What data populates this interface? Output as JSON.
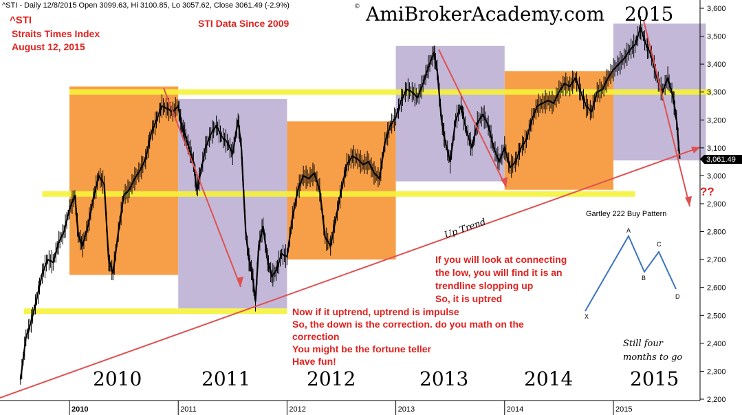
{
  "header": {
    "info_line": "^STI - Daily 12/8/2015 Open 3099.63, Hi 3100.85, Lo 3057.62, Close 3061.49 (-2.9%)",
    "symbol": "^STI",
    "name": "Straits Times Index",
    "date": "August 12, 2015",
    "data_since": "STI Data Since 2009",
    "watermark": "AmiBrokerAcademy.com",
    "watermark_year": "2015"
  },
  "colors": {
    "orange": "#f79a3e",
    "lavender": "#b9acd0",
    "yellow": "#f5f23a",
    "red_annotation": "#e0221f",
    "trend_line": "#e05050",
    "price": "#000000",
    "gartley_line": "#3a74c0"
  },
  "annotations": {
    "up_trend": "Up Trend",
    "question": "??",
    "note1": [
      "If you will look at connecting",
      "the low, you will find it is an",
      "trendline slopping up",
      "So, it is uptred"
    ],
    "note2": [
      "Now if it uptrend, uptrend is impulse",
      "So, the down is the correction. do you math on the",
      "correction",
      "You might be the fortune teller",
      "Have fun!"
    ],
    "still": [
      "Still four",
      "months to go"
    ]
  },
  "gartley": {
    "title": "Gartley 222 Buy Pattern",
    "points": [
      "X",
      "A",
      "B",
      "C",
      "D"
    ]
  },
  "year_labels_big": [
    "2010",
    "2011",
    "2012",
    "2013",
    "2014",
    "2015"
  ],
  "last_price_label": "3,061.49",
  "chart_data": {
    "type": "line",
    "title": "^STI - Daily 12/8/2015 Open 3099.63, Hi 3100.85, Lo 3057.62, Close 3061.49 (-2.9%)",
    "y_ticks": [
      "2,200",
      "2,300",
      "2,400",
      "2,500",
      "2,600",
      "2,700",
      "2,800",
      "2,900",
      "3,000",
      "3,100",
      "3,200",
      "3,300",
      "3,400",
      "3,500",
      "3,600"
    ],
    "ylim": [
      2180,
      3620
    ],
    "x_ticks": [
      "2010",
      "2011",
      "2012",
      "2013",
      "2014",
      "2015"
    ],
    "series": [
      {
        "values": [
          [
            2009.55,
            2270
          ],
          [
            2009.6,
            2420
          ],
          [
            2009.65,
            2480
          ],
          [
            2009.7,
            2560
          ],
          [
            2009.75,
            2650
          ],
          [
            2009.8,
            2700
          ],
          [
            2009.85,
            2690
          ],
          [
            2009.9,
            2760
          ],
          [
            2009.95,
            2800
          ],
          [
            2010.0,
            2880
          ],
          [
            2010.05,
            2930
          ],
          [
            2010.08,
            2790
          ],
          [
            2010.12,
            2750
          ],
          [
            2010.17,
            2820
          ],
          [
            2010.22,
            2920
          ],
          [
            2010.27,
            3000
          ],
          [
            2010.32,
            2970
          ],
          [
            2010.36,
            2700
          ],
          [
            2010.4,
            2650
          ],
          [
            2010.45,
            2800
          ],
          [
            2010.5,
            2930
          ],
          [
            2010.55,
            2950
          ],
          [
            2010.6,
            2990
          ],
          [
            2010.65,
            3020
          ],
          [
            2010.7,
            3060
          ],
          [
            2010.75,
            3150
          ],
          [
            2010.8,
            3200
          ],
          [
            2010.85,
            3250
          ],
          [
            2010.9,
            3240
          ],
          [
            2010.95,
            3230
          ],
          [
            2011.0,
            3250
          ],
          [
            2011.03,
            3180
          ],
          [
            2011.06,
            3150
          ],
          [
            2011.1,
            3100
          ],
          [
            2011.14,
            3050
          ],
          [
            2011.17,
            2950
          ],
          [
            2011.2,
            3000
          ],
          [
            2011.25,
            3100
          ],
          [
            2011.3,
            3150
          ],
          [
            2011.35,
            3180
          ],
          [
            2011.4,
            3140
          ],
          [
            2011.45,
            3120
          ],
          [
            2011.5,
            3080
          ],
          [
            2011.55,
            3200
          ],
          [
            2011.58,
            3100
          ],
          [
            2011.6,
            2950
          ],
          [
            2011.62,
            2800
          ],
          [
            2011.65,
            2700
          ],
          [
            2011.68,
            2650
          ],
          [
            2011.71,
            2550
          ],
          [
            2011.74,
            2750
          ],
          [
            2011.78,
            2820
          ],
          [
            2011.82,
            2700
          ],
          [
            2011.86,
            2640
          ],
          [
            2011.9,
            2660
          ],
          [
            2011.95,
            2720
          ],
          [
            2012.0,
            2710
          ],
          [
            2012.05,
            2850
          ],
          [
            2012.1,
            2950
          ],
          [
            2012.15,
            3000
          ],
          [
            2012.2,
            2990
          ],
          [
            2012.25,
            3010
          ],
          [
            2012.3,
            2950
          ],
          [
            2012.35,
            2780
          ],
          [
            2012.4,
            2750
          ],
          [
            2012.45,
            2850
          ],
          [
            2012.5,
            2950
          ],
          [
            2012.55,
            3040
          ],
          [
            2012.6,
            3070
          ],
          [
            2012.65,
            3060
          ],
          [
            2012.7,
            3040
          ],
          [
            2012.75,
            3050
          ],
          [
            2012.8,
            3010
          ],
          [
            2012.85,
            2990
          ],
          [
            2012.9,
            3120
          ],
          [
            2012.95,
            3180
          ],
          [
            2013.0,
            3210
          ],
          [
            2013.05,
            3270
          ],
          [
            2013.1,
            3310
          ],
          [
            2013.15,
            3300
          ],
          [
            2013.2,
            3280
          ],
          [
            2013.25,
            3330
          ],
          [
            2013.3,
            3390
          ],
          [
            2013.35,
            3440
          ],
          [
            2013.38,
            3380
          ],
          [
            2013.42,
            3200
          ],
          [
            2013.45,
            3130
          ],
          [
            2013.5,
            3050
          ],
          [
            2013.55,
            3200
          ],
          [
            2013.6,
            3250
          ],
          [
            2013.65,
            3160
          ],
          [
            2013.7,
            3100
          ],
          [
            2013.75,
            3190
          ],
          [
            2013.8,
            3220
          ],
          [
            2013.85,
            3180
          ],
          [
            2013.9,
            3100
          ],
          [
            2013.95,
            3050
          ],
          [
            2014.0,
            3100
          ],
          [
            2014.05,
            3030
          ],
          [
            2014.1,
            3050
          ],
          [
            2014.15,
            3100
          ],
          [
            2014.2,
            3130
          ],
          [
            2014.25,
            3200
          ],
          [
            2014.3,
            3250
          ],
          [
            2014.35,
            3260
          ],
          [
            2014.4,
            3270
          ],
          [
            2014.45,
            3260
          ],
          [
            2014.5,
            3300
          ],
          [
            2014.55,
            3330
          ],
          [
            2014.6,
            3320
          ],
          [
            2014.65,
            3350
          ],
          [
            2014.7,
            3300
          ],
          [
            2014.75,
            3250
          ],
          [
            2014.8,
            3230
          ],
          [
            2014.85,
            3300
          ],
          [
            2014.9,
            3310
          ],
          [
            2014.95,
            3350
          ],
          [
            2015.0,
            3380
          ],
          [
            2015.05,
            3400
          ],
          [
            2015.1,
            3420
          ],
          [
            2015.15,
            3450
          ],
          [
            2015.2,
            3470
          ],
          [
            2015.25,
            3530
          ],
          [
            2015.3,
            3470
          ],
          [
            2015.35,
            3430
          ],
          [
            2015.4,
            3350
          ],
          [
            2015.45,
            3300
          ],
          [
            2015.5,
            3350
          ],
          [
            2015.55,
            3280
          ],
          [
            2015.58,
            3200
          ],
          [
            2015.61,
            3061
          ]
        ]
      }
    ],
    "boxes": [
      {
        "x0": 2010.0,
        "x1": 2011.0,
        "y0": 2645,
        "y1": 3320,
        "color": "orange"
      },
      {
        "x0": 2011.0,
        "x1": 2012.0,
        "y0": 2525,
        "y1": 3275,
        "color": "lavender"
      },
      {
        "x0": 2012.0,
        "x1": 2013.0,
        "y0": 2700,
        "y1": 3195,
        "color": "orange"
      },
      {
        "x0": 2013.0,
        "x1": 2014.0,
        "y0": 2980,
        "y1": 3465,
        "color": "lavender"
      },
      {
        "x0": 2014.0,
        "x1": 2015.0,
        "y0": 2950,
        "y1": 3375,
        "color": "orange"
      },
      {
        "x0": 2015.0,
        "x1": 2015.85,
        "y0": 3055,
        "y1": 3545,
        "color": "lavender"
      }
    ],
    "hlines": [
      {
        "x0": 2010.0,
        "x1": 2015.9,
        "y": 3300
      },
      {
        "x0": 2009.75,
        "x1": 2015.2,
        "y": 2935
      },
      {
        "x0": 2009.58,
        "x1": 2012.0,
        "y": 2515
      }
    ]
  }
}
